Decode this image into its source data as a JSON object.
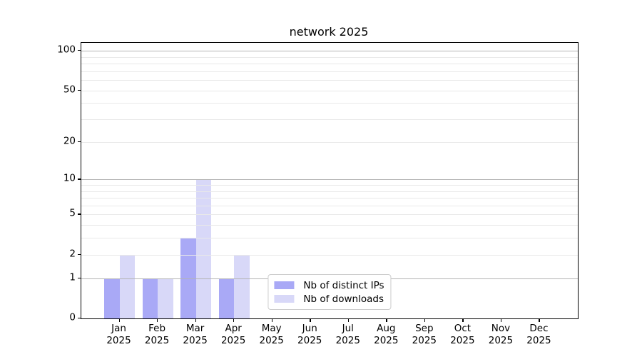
{
  "chart_data": {
    "type": "bar",
    "title": "network 2025",
    "categories": [
      "Jan",
      "Feb",
      "Mar",
      "Apr",
      "May",
      "Jun",
      "Jul",
      "Aug",
      "Sep",
      "Oct",
      "Nov",
      "Dec"
    ],
    "category_year": "2025",
    "series": [
      {
        "name": "Nb of distinct IPs",
        "color": "#a9a9f6",
        "values": [
          1,
          1,
          3,
          1,
          0,
          0,
          0,
          0,
          0,
          0,
          0,
          0
        ]
      },
      {
        "name": "Nb of downloads",
        "color": "#d8d8f8",
        "values": [
          2,
          1,
          10,
          2,
          0,
          0,
          0,
          0,
          0,
          0,
          0,
          0
        ]
      }
    ],
    "yscale": "log1p",
    "ylim": [
      0,
      115
    ],
    "y_ticks": [
      0,
      1,
      2,
      5,
      10,
      20,
      50,
      100
    ],
    "grid": {
      "major": [
        1,
        10,
        100
      ],
      "minor": [
        2,
        3,
        4,
        5,
        6,
        7,
        8,
        9,
        20,
        30,
        40,
        50,
        60,
        70,
        80,
        90
      ],
      "major_color": "#b4b4b4",
      "minor_color": "#e9e9e9"
    },
    "legend_position": "lower center",
    "frame_color": "#000000"
  }
}
